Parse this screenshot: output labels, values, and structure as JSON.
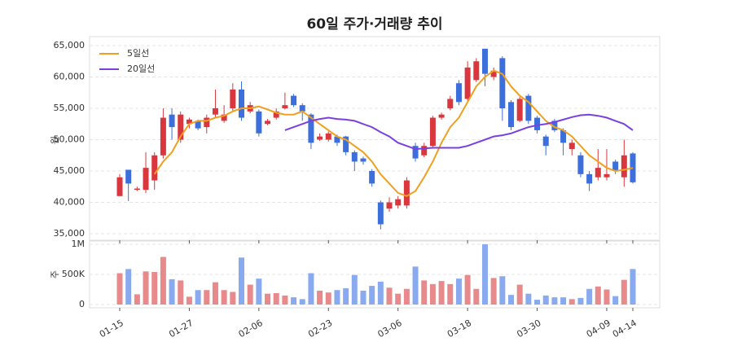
{
  "chart_data": {
    "type": "candlestick",
    "title": "60일 주가·거래량 추이",
    "ylabel": "원",
    "y2label": "주",
    "categories": [
      "01-15",
      null,
      null,
      null,
      null,
      null,
      null,
      null,
      "01-27",
      null,
      null,
      null,
      null,
      null,
      null,
      null,
      "02-06",
      null,
      null,
      null,
      null,
      null,
      null,
      null,
      "02-23",
      null,
      null,
      null,
      null,
      null,
      null,
      null,
      "03-06",
      null,
      null,
      null,
      null,
      null,
      null,
      null,
      "03-18",
      null,
      null,
      null,
      null,
      null,
      null,
      null,
      "03-30",
      null,
      null,
      null,
      null,
      null,
      null,
      null,
      "04-09",
      null,
      null,
      "04-14"
    ],
    "open": [
      41000,
      45200,
      42000,
      42000,
      43500,
      47500,
      54000,
      50000,
      52500,
      53000,
      52000,
      54000,
      53000,
      55000,
      58000,
      54500,
      54500,
      52500,
      53500,
      55000,
      57000,
      55500,
      54000,
      50000,
      50000,
      50500,
      50500,
      48000,
      47000,
      45000,
      40000,
      39000,
      39500,
      39500,
      49000,
      47500,
      49000,
      53500,
      55000,
      59000,
      56500,
      59500,
      64500,
      60000,
      63000,
      56000,
      53000,
      57000,
      53500,
      50500,
      53000,
      51500,
      48500,
      47500,
      44500,
      44000,
      44000,
      46500,
      44000,
      47800
    ],
    "high": [
      44500,
      45200,
      42500,
      48000,
      48000,
      55000,
      55000,
      54500,
      53500,
      53200,
      54000,
      58000,
      55500,
      59000,
      59300,
      56000,
      54800,
      53300,
      55000,
      57500,
      57300,
      55800,
      54200,
      51000,
      51300,
      50800,
      50600,
      48300,
      47300,
      45300,
      40300,
      40800,
      41000,
      44000,
      49500,
      49500,
      53800,
      54300,
      57000,
      59500,
      62500,
      63000,
      64500,
      61500,
      63300,
      56300,
      56800,
      57300,
      53800,
      50800,
      53300,
      51800,
      50000,
      48000,
      45000,
      48500,
      48500,
      46800,
      50000,
      48000
    ],
    "low": [
      41000,
      40200,
      41800,
      41500,
      42000,
      47000,
      50000,
      49500,
      51800,
      51500,
      51000,
      53500,
      52700,
      54500,
      53000,
      54200,
      50500,
      52300,
      53200,
      54800,
      55200,
      53000,
      48500,
      49800,
      49700,
      49000,
      47500,
      45000,
      46000,
      42500,
      35700,
      38500,
      39000,
      39000,
      46500,
      47200,
      48800,
      53200,
      54700,
      55500,
      56000,
      59200,
      58500,
      59500,
      53000,
      51500,
      52800,
      52500,
      51000,
      47500,
      51200,
      47500,
      47500,
      44000,
      41800,
      43500,
      43500,
      44500,
      42500,
      43000
    ],
    "close": [
      44000,
      43000,
      42200,
      45500,
      47500,
      53500,
      52000,
      54000,
      53200,
      51800,
      53500,
      55000,
      54000,
      58000,
      53500,
      55500,
      51000,
      53000,
      54500,
      55500,
      55500,
      54500,
      49500,
      50500,
      51000,
      49500,
      48000,
      46500,
      46500,
      43000,
      36500,
      40000,
      40500,
      43500,
      47000,
      49000,
      53500,
      54000,
      56500,
      56000,
      61500,
      62500,
      60500,
      61000,
      55000,
      52000,
      56500,
      53000,
      51500,
      49000,
      51500,
      49500,
      49500,
      44500,
      43000,
      45500,
      44500,
      45000,
      47500,
      43200
    ],
    "volume": [
      520000,
      590000,
      170000,
      550000,
      540000,
      790000,
      420000,
      400000,
      130000,
      240000,
      240000,
      370000,
      240000,
      210000,
      780000,
      330000,
      430000,
      180000,
      190000,
      150000,
      120000,
      90000,
      520000,
      230000,
      200000,
      240000,
      270000,
      490000,
      230000,
      310000,
      380000,
      280000,
      180000,
      260000,
      630000,
      400000,
      340000,
      390000,
      340000,
      430000,
      490000,
      260000,
      1000000,
      440000,
      470000,
      160000,
      330000,
      180000,
      80000,
      150000,
      120000,
      120000,
      90000,
      110000,
      260000,
      300000,
      250000,
      140000,
      410000,
      590000
    ],
    "series": [
      {
        "name": "5일선",
        "color": "#f0a020",
        "values": [
          null,
          null,
          null,
          null,
          44500,
          46500,
          48000,
          50500,
          52500,
          53000,
          53000,
          53500,
          53800,
          54500,
          55000,
          55000,
          55300,
          54800,
          54300,
          54000,
          54000,
          54500,
          53500,
          52500,
          51500,
          50500,
          50000,
          49000,
          48000,
          46500,
          44500,
          43000,
          41500,
          41000,
          41800,
          44000,
          46500,
          49500,
          52000,
          53500,
          56000,
          58500,
          60000,
          61000,
          60500,
          58500,
          57000,
          56000,
          54500,
          53000,
          52000,
          51500,
          50500,
          49000,
          47500,
          46500,
          45500,
          45000,
          45200,
          45500
        ]
      },
      {
        "name": "20일선",
        "color": "#7b3fe0",
        "values": [
          null,
          null,
          null,
          null,
          null,
          null,
          null,
          null,
          null,
          null,
          null,
          null,
          null,
          null,
          null,
          null,
          null,
          null,
          null,
          51500,
          52000,
          52500,
          53000,
          53300,
          53500,
          53300,
          53200,
          53000,
          52500,
          52000,
          51200,
          50500,
          49500,
          49000,
          48500,
          48600,
          48700,
          48700,
          48700,
          48700,
          49000,
          49500,
          50000,
          50500,
          50700,
          51000,
          51500,
          52000,
          52300,
          52500,
          52800,
          53200,
          53600,
          53900,
          54000,
          53800,
          53500,
          53000,
          52500,
          51500
        ]
      }
    ],
    "up_color": "#d9363e",
    "down_color": "#3c6fdb",
    "up_volume_color": "#e8898c",
    "down_volume_color": "#8aaaf0",
    "ylim": [
      35000,
      65000
    ],
    "yticks": [
      {
        "value": 35000,
        "label": "35,000"
      },
      {
        "value": 40000,
        "label": "40,000"
      },
      {
        "value": 45000,
        "label": "45,000"
      },
      {
        "value": 50000,
        "label": "50,000"
      },
      {
        "value": 55000,
        "label": "55,000"
      },
      {
        "value": 60000,
        "label": "60,000"
      },
      {
        "value": 65000,
        "label": "65,000"
      }
    ],
    "y2lim": [
      0,
      1000000
    ],
    "y2ticks": [
      0,
      {
        "value": 500000,
        "label": "500K"
      },
      {
        "value": 1000000,
        "label": "1M"
      }
    ],
    "grid": true,
    "legend": "upper left"
  }
}
